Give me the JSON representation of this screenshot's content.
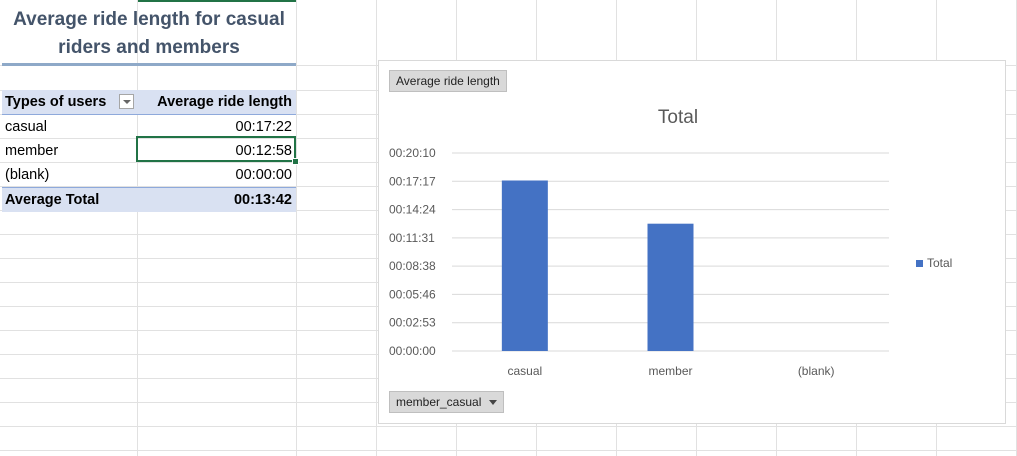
{
  "title": "Average ride length for casual riders and members",
  "pivot": {
    "header": {
      "col1": "Types of users",
      "col2": "Average ride length"
    },
    "rows": [
      {
        "type": "casual",
        "value": "00:17:22"
      },
      {
        "type": "member",
        "value": "00:12:58"
      },
      {
        "type": "(blank)",
        "value": "00:00:00"
      }
    ],
    "total": {
      "label": "Average Total",
      "value": "00:13:42"
    }
  },
  "chart": {
    "value_field_button": "Average ride length",
    "axis_field_button": "member_casual",
    "title": "Total",
    "legend": "Total"
  },
  "colors": {
    "bar": "#4472c4",
    "header_fill": "#d9e1f2",
    "title_text": "#44546a",
    "selection": "#217346"
  },
  "chart_data": {
    "type": "bar",
    "categories": [
      "casual",
      "member",
      "(blank)"
    ],
    "values_seconds": [
      1042,
      778,
      0
    ],
    "series": [
      {
        "name": "Total",
        "values": [
          "00:17:22",
          "00:12:58",
          "00:00:00"
        ]
      }
    ],
    "yticks": [
      "00:00:00",
      "00:02:53",
      "00:05:46",
      "00:08:38",
      "00:11:31",
      "00:14:24",
      "00:17:17",
      "00:20:10"
    ],
    "ylim_seconds": [
      0,
      1210
    ],
    "title": "Total",
    "grid": true,
    "legend_position": "right"
  }
}
